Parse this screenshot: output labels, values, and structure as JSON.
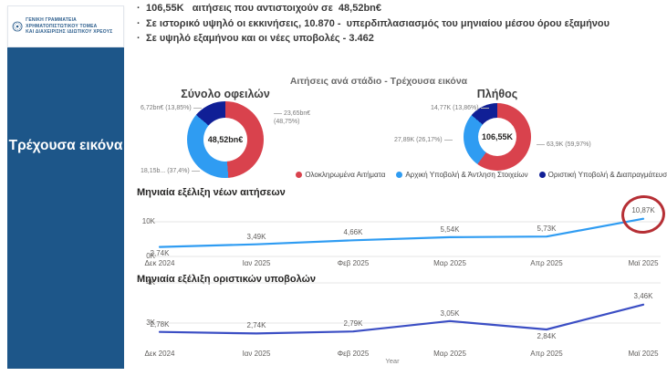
{
  "logo": {
    "line1": "ΓΕΝΙΚΗ ΓΡΑΜΜΑΤΕΙΑ ΧΡΗΜΑΤΟΠΙΣΤΩΤΙΚΟΥ ΤΟΜΕΑ",
    "line2": "ΚΑΙ ΔΙΑΧΕΙΡΙΣΗΣ ΙΔΙΩΤΙΚΟΥ ΧΡΕΟΥΣ"
  },
  "sidebar": {
    "title": "Τρέχουσα εικόνα",
    "bg_color": "#1d5689"
  },
  "bullets": [
    "106,55K   αιτήσεις που αντιστοιχούν σε  48,52bn€",
    "Σε ιστορικό υψηλό οι εκκινήσεις, 10.870 -  υπερδιπλασιασμός του μηνιαίου μέσου όρου εξαμήνου",
    "Σε υψηλό εξαμήνου και οι νέες υποβολές - 3.462"
  ],
  "section_title": "Αιτήσεις ανά στάδιο - Τρέχουσα εικόνα",
  "legend": [
    {
      "label": "Ολοκληρωμένα Αιτήματα",
      "color": "#d9424d"
    },
    {
      "label": "Αρχική Υποβολή & Άντληση Στοιχείων",
      "color": "#2f9cf2"
    },
    {
      "label": "Οριστική Υποβολή & Διαπραγμάτευση",
      "color": "#101f96"
    }
  ],
  "chart_data": [
    {
      "type": "pie",
      "donut": true,
      "title": "Σύνολο οφειλών",
      "center_label": "48,52bn€",
      "slices": [
        {
          "name": "Ολοκληρωμένα Αιτήματα",
          "value_label": "23,65bn€",
          "pct_label": "(48,75%)",
          "pct": 48.75,
          "color": "#d9424d"
        },
        {
          "name": "Αρχική Υποβολή & Άντληση Στοιχείων",
          "value_label": "18,15b...",
          "pct_label": "(37,4%)",
          "pct": 37.4,
          "color": "#2f9cf2"
        },
        {
          "name": "Οριστική Υποβολή & Διαπραγμάτευση",
          "value_label": "6,72bn€",
          "pct_label": "(13,85%)",
          "pct": 13.85,
          "color": "#101f96"
        }
      ]
    },
    {
      "type": "pie",
      "donut": true,
      "title": "Πλήθος",
      "center_label": "106,55K",
      "slices": [
        {
          "name": "Ολοκληρωμένα Αιτήματα",
          "value_label": "63,9K",
          "pct_label": "(59,97%)",
          "pct": 59.97,
          "color": "#d9424d"
        },
        {
          "name": "Αρχική Υποβολή & Άντληση Στοιχείων",
          "value_label": "27,89K",
          "pct_label": "(26,17%)",
          "pct": 26.17,
          "color": "#2f9cf2"
        },
        {
          "name": "Οριστική Υποβολή & Διαπραγμάτευση",
          "value_label": "14,77K",
          "pct_label": "(13,86%)",
          "pct": 13.86,
          "color": "#101f96"
        }
      ]
    },
    {
      "type": "line",
      "title": "Μηνιαία εξέλιξη νέων αιτήσεων",
      "categories": [
        "Δεκ 2024",
        "Ιαν 2025",
        "Φεβ 2025",
        "Μαρ 2025",
        "Απρ 2025",
        "Μαϊ 2025"
      ],
      "values": [
        2.74,
        3.49,
        4.66,
        5.54,
        5.73,
        10.87
      ],
      "point_labels": [
        "2,74K",
        "3,49K",
        "4,66K",
        "5,54K",
        "5,73K",
        "10,87K"
      ],
      "unit": "K",
      "ylim": [
        0,
        11.5
      ],
      "yticks": [
        {
          "label": "0K",
          "value": 0
        },
        {
          "label": "10K",
          "value": 10
        }
      ],
      "grid": true,
      "color": "#2f9cf2",
      "highlight_last": true,
      "xlabel": ""
    },
    {
      "type": "line",
      "title": "Μηνιαία εξέλιξη οριστικών υποβολών",
      "categories": [
        "Δεκ 2024",
        "Ιαν 2025",
        "Φεβ 2025",
        "Μαρ 2025",
        "Απρ 2025",
        "Μαϊ 2025"
      ],
      "values": [
        2.78,
        2.74,
        2.79,
        3.05,
        2.84,
        3.46
      ],
      "point_labels": [
        "2,78K",
        "2,74K",
        "2,79K",
        "3,05K",
        "2,84K",
        "3,46K"
      ],
      "unit": "K",
      "ylim": [
        2.5,
        4.2
      ],
      "yticks": [
        {
          "label": "3K",
          "value": 3
        },
        {
          "label": "4K",
          "value": 4
        }
      ],
      "grid": true,
      "color": "#3b4ec4",
      "highlight_last": false,
      "xlabel": "Year"
    }
  ]
}
